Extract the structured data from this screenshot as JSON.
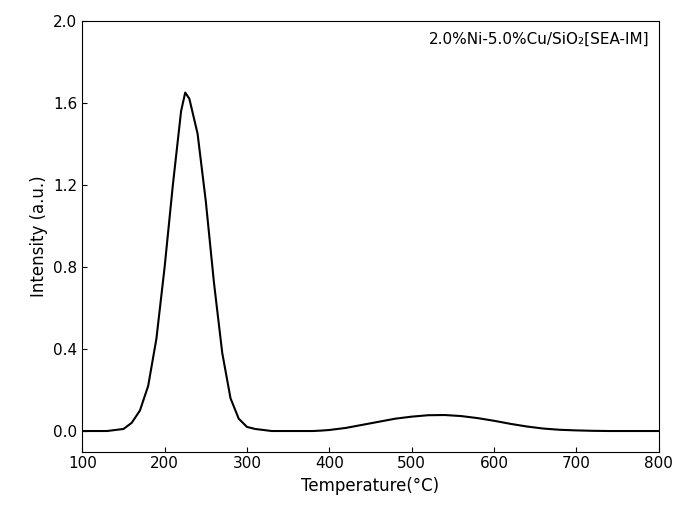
{
  "chart_data": {
    "type": "line",
    "annotation": "2.0%Ni-5.0%Cu/SiO₂[SEA-IM]",
    "x_label": "Temperature(°C)",
    "y_label": "Intensity (a.u.)",
    "x": [
      100,
      110,
      120,
      130,
      140,
      150,
      160,
      170,
      180,
      190,
      200,
      210,
      220,
      225,
      230,
      240,
      250,
      260,
      270,
      280,
      290,
      300,
      310,
      320,
      330,
      340,
      350,
      360,
      370,
      380,
      390,
      400,
      420,
      440,
      460,
      480,
      500,
      520,
      540,
      560,
      580,
      600,
      620,
      640,
      660,
      680,
      700,
      720,
      740,
      760,
      780,
      800
    ],
    "values": [
      0,
      0,
      0,
      0,
      0.005,
      0.01,
      0.04,
      0.1,
      0.22,
      0.45,
      0.8,
      1.2,
      1.56,
      1.65,
      1.62,
      1.45,
      1.12,
      0.72,
      0.38,
      0.16,
      0.06,
      0.02,
      0.01,
      0.005,
      0,
      0,
      0,
      0,
      0,
      0,
      0.002,
      0.005,
      0.015,
      0.03,
      0.045,
      0.06,
      0.07,
      0.077,
      0.078,
      0.073,
      0.063,
      0.05,
      0.035,
      0.022,
      0.012,
      0.006,
      0.003,
      0.001,
      0,
      0,
      0,
      0
    ],
    "color": "#000000",
    "xlim": [
      100,
      800
    ],
    "xticks": [
      100,
      200,
      300,
      400,
      500,
      600,
      700,
      800
    ],
    "ylim": [
      -0.1,
      2.0
    ],
    "yticks": [
      {
        "value": 0,
        "label": "0.0"
      },
      {
        "value": 0.4,
        "label": "0.4"
      },
      {
        "value": 0.8,
        "label": "0.8"
      },
      {
        "value": 1.2,
        "label": "1.2"
      },
      {
        "value": 1.6,
        "label": "1.6"
      },
      {
        "value": 2.0,
        "label": "2.0"
      }
    ]
  }
}
